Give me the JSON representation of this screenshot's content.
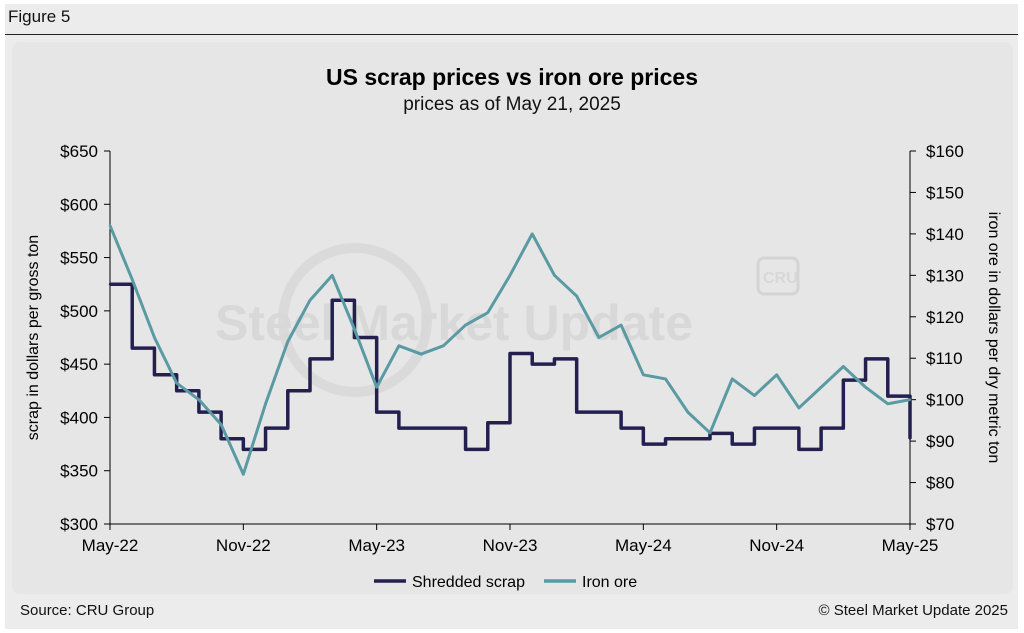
{
  "figure_label": "Figure 5",
  "source": "Source: CRU Group",
  "copyright": "© Steel Market Update 2025",
  "watermark": {
    "text": "Steel Market Update",
    "badge": "CRU"
  },
  "colors": {
    "shredded_scrap": "#23204f",
    "iron_ore": "#5a9aa3",
    "background": "#e6e6e6"
  },
  "chart_data": {
    "type": "line",
    "title": "US scrap prices vs iron ore prices",
    "subtitle": "prices as of May 21, 2025",
    "ylabel": "scrap in dollars per gross ton",
    "y2label": "iron ore in dollars per dry metric ton",
    "ylim": [
      300,
      650
    ],
    "y2lim": [
      70,
      160
    ],
    "yticks": [
      "$300",
      "$350",
      "$400",
      "$450",
      "$500",
      "$550",
      "$600",
      "$650"
    ],
    "y2ticks": [
      "$70",
      "$80",
      "$90",
      "$100",
      "$110",
      "$120",
      "$130",
      "$140",
      "$150",
      "$160"
    ],
    "xticks": [
      "May-22",
      "Nov-22",
      "May-23",
      "Nov-23",
      "May-24",
      "Nov-24",
      "May-25"
    ],
    "legend_position": "bottom",
    "series": [
      {
        "name": "Shredded scrap",
        "axis": "left",
        "x": [
          "2022-05",
          "2022-06",
          "2022-07",
          "2022-08",
          "2022-09",
          "2022-10",
          "2022-11",
          "2022-12",
          "2023-01",
          "2023-02",
          "2023-03",
          "2023-04",
          "2023-05",
          "2023-06",
          "2023-07",
          "2023-08",
          "2023-09",
          "2023-10",
          "2023-11",
          "2023-12",
          "2024-01",
          "2024-02",
          "2024-03",
          "2024-04",
          "2024-05",
          "2024-06",
          "2024-07",
          "2024-08",
          "2024-09",
          "2024-10",
          "2024-11",
          "2024-12",
          "2025-01",
          "2025-02",
          "2025-03",
          "2025-04",
          "2025-05"
        ],
        "values": [
          525,
          465,
          440,
          425,
          405,
          380,
          370,
          390,
          425,
          455,
          510,
          475,
          405,
          390,
          390,
          390,
          370,
          395,
          460,
          450,
          455,
          405,
          405,
          390,
          375,
          380,
          380,
          385,
          375,
          390,
          390,
          370,
          390,
          435,
          455,
          420,
          380
        ]
      },
      {
        "name": "Iron ore",
        "axis": "right",
        "x": [
          "2022-05",
          "2022-06",
          "2022-07",
          "2022-08",
          "2022-09",
          "2022-10",
          "2022-11",
          "2022-12",
          "2023-01",
          "2023-02",
          "2023-03",
          "2023-04",
          "2023-05",
          "2023-06",
          "2023-07",
          "2023-08",
          "2023-09",
          "2023-10",
          "2023-11",
          "2023-12",
          "2024-01",
          "2024-02",
          "2024-03",
          "2024-04",
          "2024-05",
          "2024-06",
          "2024-07",
          "2024-08",
          "2024-09",
          "2024-10",
          "2024-11",
          "2024-12",
          "2025-01",
          "2025-02",
          "2025-03",
          "2025-04",
          "2025-05"
        ],
        "values": [
          142,
          129,
          115,
          104,
          100,
          94,
          82,
          99,
          114,
          124,
          130,
          117,
          103,
          113,
          111,
          113,
          118,
          121,
          130,
          140,
          130,
          125,
          115,
          118,
          106,
          105,
          97,
          92,
          105,
          101,
          106,
          98,
          103,
          108,
          103,
          99,
          100
        ]
      }
    ]
  }
}
